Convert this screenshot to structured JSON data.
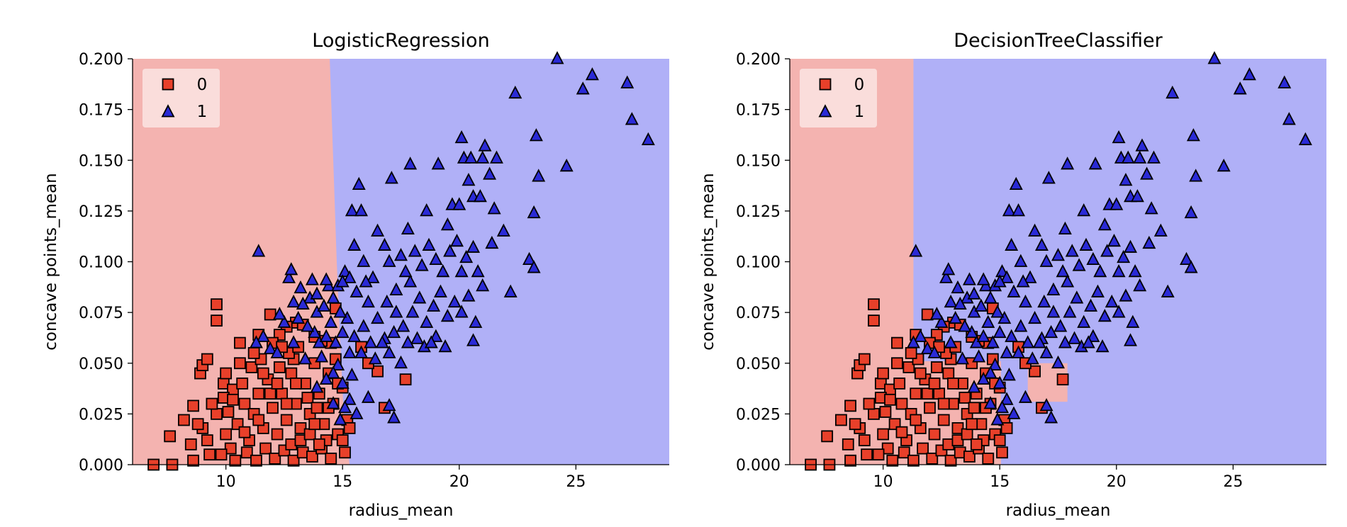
{
  "colors": {
    "class0_region": "#f4b3b0",
    "class1_region": "#b0b0f7",
    "class0_marker": "#e8402a",
    "class1_marker": "#2a2ad6",
    "marker_edge": "#000000"
  },
  "legend": {
    "placement": "top-left",
    "entries": [
      {
        "label": "0",
        "marker": "square"
      },
      {
        "label": "1",
        "marker": "triangle"
      }
    ]
  },
  "chart_data": [
    {
      "type": "scatter",
      "title": "LogisticRegression",
      "xlabel": "radius_mean",
      "ylabel": "concave points_mean",
      "xlim": [
        6,
        29
      ],
      "ylim": [
        0,
        0.2
      ],
      "xticks": [
        "10",
        "15",
        "20",
        "25"
      ],
      "yticks": [
        "0.000",
        "0.025",
        "0.050",
        "0.075",
        "0.100",
        "0.125",
        "0.150",
        "0.175",
        "0.200"
      ],
      "decision_boundary": "near-vertical line at radius_mean ≈ 14.5–15.3 (class 0 left, class 1 right)",
      "class0_regions": [
        [
          6,
          0,
          14.5,
          0.2
        ]
      ]
    },
    {
      "type": "scatter",
      "title": "DecisionTreeClassifier",
      "xlabel": "radius_mean",
      "ylabel": "concave points_mean",
      "xlim": [
        6,
        29
      ],
      "ylim": [
        0,
        0.2
      ],
      "xticks": [
        "10",
        "15",
        "20",
        "25"
      ],
      "yticks": [
        "0.000",
        "0.025",
        "0.050",
        "0.075",
        "0.100",
        "0.125",
        "0.150",
        "0.175",
        "0.200"
      ],
      "decision_boundary": "axis-aligned splits: class 0 for radius_mean < 11.3, and for 11.3–15.05 with concave points_mean < 0.051; small class 0 patch at radius 16.2–17.9, concave points 0.031–0.050",
      "class0_regions": [
        [
          6,
          0,
          11.3,
          0.2
        ],
        [
          11.3,
          0,
          15.05,
          0.051
        ],
        [
          16.2,
          0.031,
          17.9,
          0.05
        ]
      ]
    }
  ],
  "points": {
    "class1": [
      [
        11.4,
        0.105
      ],
      [
        12.7,
        0.092
      ],
      [
        12.8,
        0.096
      ],
      [
        13.2,
        0.087
      ],
      [
        13.7,
        0.091
      ],
      [
        14.4,
        0.088
      ],
      [
        14.6,
        0.082
      ],
      [
        14.8,
        0.088
      ],
      [
        15.1,
        0.095
      ],
      [
        15.3,
        0.092
      ],
      [
        15.4,
        0.125
      ],
      [
        15.8,
        0.125
      ],
      [
        15.7,
        0.138
      ],
      [
        16.5,
        0.115
      ],
      [
        17.1,
        0.141
      ],
      [
        17.8,
        0.116
      ],
      [
        17.9,
        0.148
      ],
      [
        18.6,
        0.125
      ],
      [
        19.1,
        0.148
      ],
      [
        19.5,
        0.118
      ],
      [
        19.7,
        0.128
      ],
      [
        20.0,
        0.128
      ],
      [
        20.1,
        0.161
      ],
      [
        20.2,
        0.151
      ],
      [
        20.5,
        0.151
      ],
      [
        20.6,
        0.132
      ],
      [
        20.9,
        0.132
      ],
      [
        20.4,
        0.14
      ],
      [
        21.0,
        0.151
      ],
      [
        21.3,
        0.143
      ],
      [
        21.1,
        0.157
      ],
      [
        21.6,
        0.151
      ],
      [
        21.5,
        0.126
      ],
      [
        21.9,
        0.115
      ],
      [
        22.4,
        0.183
      ],
      [
        22.2,
        0.085
      ],
      [
        23.2,
        0.124
      ],
      [
        23.0,
        0.101
      ],
      [
        23.3,
        0.162
      ],
      [
        23.4,
        0.142
      ],
      [
        24.2,
        0.2
      ],
      [
        24.6,
        0.147
      ],
      [
        25.3,
        0.185
      ],
      [
        25.7,
        0.192
      ],
      [
        27.2,
        0.188
      ],
      [
        27.4,
        0.17
      ],
      [
        28.1,
        0.16
      ],
      [
        23.2,
        0.097
      ],
      [
        15.5,
        0.108
      ],
      [
        15.9,
        0.1
      ],
      [
        16.3,
        0.092
      ],
      [
        16.8,
        0.108
      ],
      [
        17.0,
        0.1
      ],
      [
        17.5,
        0.103
      ],
      [
        17.7,
        0.095
      ],
      [
        18.1,
        0.105
      ],
      [
        18.4,
        0.098
      ],
      [
        18.7,
        0.108
      ],
      [
        19.0,
        0.101
      ],
      [
        19.3,
        0.095
      ],
      [
        19.6,
        0.105
      ],
      [
        19.9,
        0.11
      ],
      [
        20.1,
        0.095
      ],
      [
        20.3,
        0.102
      ],
      [
        20.6,
        0.107
      ],
      [
        20.8,
        0.095
      ],
      [
        21.0,
        0.088
      ],
      [
        21.4,
        0.109
      ],
      [
        15.6,
        0.085
      ],
      [
        16.1,
        0.08
      ],
      [
        16.5,
        0.072
      ],
      [
        16.9,
        0.08
      ],
      [
        17.3,
        0.075
      ],
      [
        17.6,
        0.068
      ],
      [
        18.0,
        0.075
      ],
      [
        18.3,
        0.082
      ],
      [
        18.6,
        0.07
      ],
      [
        18.9,
        0.078
      ],
      [
        19.2,
        0.085
      ],
      [
        19.5,
        0.073
      ],
      [
        19.8,
        0.08
      ],
      [
        20.1,
        0.075
      ],
      [
        20.4,
        0.083
      ],
      [
        20.7,
        0.07
      ],
      [
        19.0,
        0.063
      ],
      [
        18.5,
        0.058
      ],
      [
        18.2,
        0.062
      ],
      [
        17.8,
        0.06
      ],
      [
        17.2,
        0.065
      ],
      [
        16.8,
        0.062
      ],
      [
        16.2,
        0.06
      ],
      [
        15.9,
        0.068
      ],
      [
        15.5,
        0.063
      ],
      [
        15.2,
        0.072
      ],
      [
        15.0,
        0.065
      ],
      [
        14.7,
        0.06
      ],
      [
        15.3,
        0.055
      ],
      [
        15.8,
        0.055
      ],
      [
        16.4,
        0.052
      ],
      [
        17.0,
        0.055
      ],
      [
        17.5,
        0.05
      ],
      [
        16.7,
        0.06
      ],
      [
        18.8,
        0.06
      ],
      [
        19.4,
        0.058
      ],
      [
        20.6,
        0.061
      ],
      [
        17.3,
        0.086
      ],
      [
        16.0,
        0.09
      ],
      [
        17.9,
        0.09
      ],
      [
        14.0,
        0.06
      ],
      [
        13.8,
        0.065
      ],
      [
        14.3,
        0.063
      ],
      [
        14.5,
        0.07
      ],
      [
        13.5,
        0.068
      ],
      [
        13.1,
        0.072
      ],
      [
        12.9,
        0.06
      ],
      [
        12.5,
        0.07
      ],
      [
        13.9,
        0.075
      ],
      [
        14.2,
        0.078
      ],
      [
        13.6,
        0.082
      ],
      [
        12.9,
        0.08
      ],
      [
        12.3,
        0.074
      ],
      [
        11.6,
        0.063
      ],
      [
        11.3,
        0.06
      ],
      [
        11.9,
        0.057
      ],
      [
        12.2,
        0.055
      ],
      [
        13.4,
        0.052
      ],
      [
        14.1,
        0.053
      ],
      [
        14.8,
        0.049
      ],
      [
        15.0,
        0.04
      ],
      [
        14.6,
        0.045
      ],
      [
        15.3,
        0.032
      ],
      [
        15.1,
        0.028
      ],
      [
        14.9,
        0.022
      ],
      [
        15.6,
        0.025
      ],
      [
        14.6,
        0.03
      ],
      [
        13.9,
        0.038
      ],
      [
        14.3,
        0.042
      ],
      [
        16.1,
        0.033
      ],
      [
        17.2,
        0.023
      ],
      [
        17.0,
        0.029
      ],
      [
        15.4,
        0.044
      ],
      [
        15.0,
        0.09
      ],
      [
        14.3,
        0.091
      ],
      [
        13.9,
        0.084
      ],
      [
        13.3,
        0.079
      ],
      [
        14.9,
        0.075
      ]
    ],
    "class0": [
      [
        6.9,
        0.0
      ],
      [
        7.7,
        0.0
      ],
      [
        8.6,
        0.002
      ],
      [
        7.6,
        0.014
      ],
      [
        8.2,
        0.022
      ],
      [
        8.6,
        0.029
      ],
      [
        8.9,
        0.045
      ],
      [
        9.0,
        0.049
      ],
      [
        9.2,
        0.052
      ],
      [
        9.6,
        0.079
      ],
      [
        9.6,
        0.071
      ],
      [
        9.9,
        0.04
      ],
      [
        10.3,
        0.037
      ],
      [
        10.6,
        0.06
      ],
      [
        11.4,
        0.064
      ],
      [
        11.9,
        0.074
      ],
      [
        13.0,
        0.07
      ],
      [
        12.9,
        0.052
      ],
      [
        17.7,
        0.042
      ],
      [
        16.5,
        0.046
      ],
      [
        16.1,
        0.05
      ],
      [
        16.8,
        0.028
      ],
      [
        15.8,
        0.058
      ],
      [
        14.5,
        0.06
      ],
      [
        14.7,
        0.077
      ],
      [
        14.1,
        0.061
      ],
      [
        13.8,
        0.063
      ],
      [
        13.3,
        0.069
      ],
      [
        12.6,
        0.068
      ],
      [
        12.3,
        0.064
      ],
      [
        8.5,
        0.01
      ],
      [
        9.0,
        0.018
      ],
      [
        9.3,
        0.005
      ],
      [
        9.6,
        0.025
      ],
      [
        10.0,
        0.015
      ],
      [
        10.2,
        0.008
      ],
      [
        10.5,
        0.02
      ],
      [
        10.8,
        0.03
      ],
      [
        11.0,
        0.012
      ],
      [
        11.2,
        0.025
      ],
      [
        11.4,
        0.035
      ],
      [
        11.6,
        0.018
      ],
      [
        11.8,
        0.042
      ],
      [
        12.0,
        0.028
      ],
      [
        12.2,
        0.015
      ],
      [
        12.4,
        0.035
      ],
      [
        12.6,
        0.022
      ],
      [
        12.8,
        0.045
      ],
      [
        13.0,
        0.03
      ],
      [
        13.2,
        0.018
      ],
      [
        13.4,
        0.04
      ],
      [
        13.6,
        0.025
      ],
      [
        13.8,
        0.05
      ],
      [
        14.0,
        0.035
      ],
      [
        14.2,
        0.02
      ],
      [
        14.4,
        0.045
      ],
      [
        14.6,
        0.03
      ],
      [
        14.8,
        0.015
      ],
      [
        15.0,
        0.038
      ],
      [
        15.2,
        0.022
      ],
      [
        9.8,
        0.005
      ],
      [
        10.4,
        0.002
      ],
      [
        10.9,
        0.006
      ],
      [
        11.3,
        0.002
      ],
      [
        11.7,
        0.008
      ],
      [
        12.1,
        0.003
      ],
      [
        12.5,
        0.007
      ],
      [
        12.9,
        0.002
      ],
      [
        13.3,
        0.006
      ],
      [
        13.7,
        0.004
      ],
      [
        14.1,
        0.008
      ],
      [
        14.5,
        0.003
      ],
      [
        15.1,
        0.006
      ],
      [
        9.4,
        0.03
      ],
      [
        9.9,
        0.033
      ],
      [
        10.1,
        0.026
      ],
      [
        10.7,
        0.04
      ],
      [
        11.1,
        0.048
      ],
      [
        11.5,
        0.052
      ],
      [
        11.9,
        0.035
      ],
      [
        12.3,
        0.048
      ],
      [
        12.7,
        0.055
      ],
      [
        13.1,
        0.058
      ],
      [
        13.5,
        0.033
      ],
      [
        13.9,
        0.028
      ],
      [
        14.3,
        0.012
      ],
      [
        14.7,
        0.052
      ],
      [
        15.3,
        0.018
      ],
      [
        8.8,
        0.02
      ],
      [
        9.2,
        0.012
      ],
      [
        10.0,
        0.045
      ],
      [
        10.6,
        0.05
      ],
      [
        11.2,
        0.055
      ],
      [
        11.6,
        0.045
      ],
      [
        12.0,
        0.06
      ],
      [
        12.4,
        0.058
      ],
      [
        12.8,
        0.01
      ],
      [
        13.2,
        0.012
      ],
      [
        13.6,
        0.015
      ],
      [
        14.0,
        0.01
      ],
      [
        14.4,
        0.028
      ],
      [
        14.8,
        0.04
      ],
      [
        15.0,
        0.012
      ],
      [
        12.2,
        0.04
      ],
      [
        11.4,
        0.022
      ],
      [
        10.8,
        0.016
      ],
      [
        10.3,
        0.032
      ],
      [
        13.8,
        0.02
      ],
      [
        13.0,
        0.04
      ],
      [
        12.6,
        0.03
      ]
    ]
  }
}
